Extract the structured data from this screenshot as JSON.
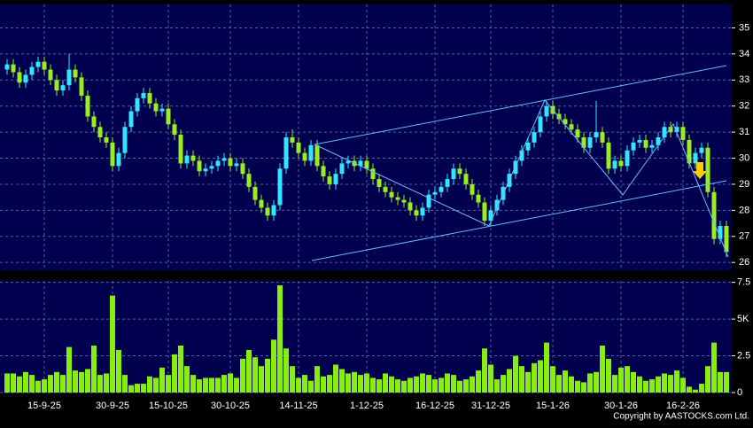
{
  "chart_data": {
    "type": "candlestick",
    "categories": [
      null,
      null,
      null,
      null,
      null,
      null,
      "15-9-25",
      null,
      null,
      null,
      null,
      null,
      null,
      null,
      null,
      null,
      null,
      "30-9-25",
      null,
      null,
      null,
      null,
      null,
      null,
      null,
      null,
      "15-10-25",
      null,
      null,
      null,
      null,
      null,
      null,
      null,
      null,
      null,
      "30-10-25",
      null,
      null,
      null,
      null,
      null,
      null,
      null,
      null,
      null,
      null,
      "14-11-25",
      null,
      null,
      null,
      null,
      null,
      null,
      null,
      null,
      null,
      null,
      "1-12-25",
      null,
      null,
      null,
      null,
      null,
      null,
      null,
      null,
      null,
      null,
      "16-12-25",
      null,
      null,
      null,
      null,
      null,
      null,
      null,
      null,
      "31-12-25",
      null,
      null,
      null,
      null,
      null,
      null,
      null,
      null,
      null,
      "15-1-26",
      null,
      null,
      null,
      null,
      null,
      null,
      null,
      null,
      null,
      null,
      "30-1-26",
      null,
      null,
      null,
      null,
      null,
      null,
      null,
      null,
      null,
      "16-2-26",
      null,
      null,
      null,
      null,
      null,
      null,
      null
    ],
    "open": [
      33.4,
      33.6,
      33.3,
      32.9,
      33.2,
      33.5,
      33.7,
      33.4,
      33.0,
      32.6,
      32.8,
      33.4,
      33.1,
      32.4,
      31.6,
      31.2,
      30.8,
      30.6,
      29.7,
      30.2,
      31.2,
      31.8,
      32.3,
      32.5,
      32.1,
      31.8,
      31.9,
      31.3,
      30.9,
      29.8,
      30.1,
      29.9,
      29.5,
      29.6,
      29.7,
      29.9,
      30.0,
      29.7,
      29.8,
      29.4,
      28.9,
      28.4,
      28.1,
      27.8,
      28.2,
      29.6,
      30.8,
      30.6,
      30.2,
      29.9,
      30.5,
      29.7,
      29.3,
      29.0,
      29.4,
      29.8,
      29.9,
      29.7,
      29.9,
      29.6,
      29.2,
      28.9,
      28.7,
      28.5,
      28.4,
      28.3,
      28.0,
      27.8,
      28.1,
      28.6,
      28.7,
      28.9,
      29.2,
      29.6,
      29.4,
      29.0,
      28.6,
      28.3,
      27.6,
      28.0,
      28.4,
      28.9,
      29.4,
      29.9,
      30.3,
      30.6,
      31.0,
      31.6,
      32.0,
      31.7,
      31.5,
      31.3,
      31.1,
      30.8,
      30.4,
      30.8,
      31.0,
      30.6,
      29.6,
      29.9,
      29.7,
      30.3,
      30.6,
      30.7,
      30.4,
      30.5,
      30.8,
      31.2,
      31.0,
      31.2,
      30.7,
      29.8,
      30.2,
      30.4,
      28.7,
      26.9,
      27.4
    ],
    "high": [
      33.8,
      33.8,
      33.5,
      33.4,
      33.7,
      33.9,
      33.9,
      33.6,
      33.2,
      33.0,
      34.0,
      33.6,
      33.3,
      32.6,
      31.8,
      31.4,
      31.0,
      30.8,
      30.4,
      31.4,
      32.0,
      32.5,
      32.7,
      32.7,
      32.3,
      32.1,
      32.1,
      31.5,
      31.1,
      30.3,
      30.3,
      30.1,
      29.8,
      29.9,
      30.1,
      30.2,
      30.2,
      30.0,
      30.0,
      29.6,
      29.1,
      28.6,
      28.3,
      28.4,
      29.8,
      31.0,
      31.1,
      30.8,
      30.4,
      30.7,
      30.7,
      29.9,
      29.5,
      29.6,
      30.0,
      30.1,
      30.1,
      30.1,
      30.1,
      29.8,
      29.4,
      29.1,
      28.9,
      28.7,
      28.6,
      28.5,
      28.2,
      28.3,
      28.8,
      28.9,
      29.1,
      29.4,
      29.8,
      29.8,
      29.6,
      29.2,
      28.8,
      28.5,
      28.2,
      28.6,
      29.1,
      29.6,
      30.1,
      30.5,
      30.8,
      31.2,
      31.8,
      32.2,
      32.2,
      31.9,
      31.7,
      31.5,
      31.3,
      31.0,
      31.0,
      32.2,
      31.2,
      30.8,
      30.1,
      30.1,
      30.5,
      30.8,
      30.9,
      30.9,
      30.7,
      31.0,
      31.4,
      31.4,
      31.4,
      31.4,
      30.9,
      30.4,
      30.6,
      30.6,
      28.9,
      27.6,
      27.6
    ],
    "low": [
      33.2,
      33.1,
      32.7,
      32.7,
      33.0,
      33.3,
      33.2,
      32.8,
      32.4,
      32.4,
      32.6,
      32.9,
      32.2,
      31.4,
      31.0,
      30.6,
      30.4,
      29.5,
      29.5,
      30.0,
      31.0,
      31.6,
      32.1,
      31.9,
      31.6,
      31.6,
      31.1,
      30.7,
      29.6,
      29.6,
      29.7,
      29.3,
      29.3,
      29.4,
      29.5,
      29.7,
      29.5,
      29.5,
      29.2,
      28.7,
      28.2,
      27.9,
      27.6,
      27.6,
      28.0,
      29.4,
      30.4,
      30.0,
      29.7,
      29.7,
      29.5,
      29.1,
      28.8,
      28.8,
      29.2,
      29.6,
      29.5,
      29.5,
      29.4,
      29.0,
      28.7,
      28.5,
      28.3,
      28.2,
      28.1,
      27.8,
      27.6,
      27.6,
      27.9,
      28.4,
      28.5,
      28.7,
      29.0,
      29.2,
      28.8,
      28.4,
      28.1,
      27.4,
      27.4,
      27.8,
      28.2,
      28.7,
      29.2,
      29.7,
      30.1,
      30.4,
      30.8,
      31.4,
      31.5,
      31.3,
      31.1,
      30.9,
      30.6,
      30.2,
      30.2,
      30.6,
      30.4,
      29.4,
      29.4,
      29.5,
      29.5,
      30.1,
      30.4,
      30.2,
      30.2,
      30.3,
      30.6,
      30.8,
      30.8,
      30.5,
      29.6,
      29.6,
      30.0,
      28.5,
      26.7,
      26.7,
      26.2
    ],
    "close": [
      33.6,
      33.3,
      32.9,
      33.2,
      33.5,
      33.7,
      33.4,
      33.0,
      32.6,
      32.8,
      33.4,
      33.1,
      32.4,
      31.6,
      31.2,
      30.8,
      30.6,
      29.7,
      30.2,
      31.2,
      31.8,
      32.3,
      32.5,
      32.1,
      31.8,
      31.9,
      31.3,
      30.9,
      29.8,
      30.1,
      29.9,
      29.5,
      29.6,
      29.7,
      29.9,
      30.0,
      29.7,
      29.8,
      29.4,
      28.9,
      28.4,
      28.1,
      27.8,
      28.2,
      29.6,
      30.8,
      30.6,
      30.2,
      29.9,
      30.5,
      29.7,
      29.3,
      29.0,
      29.4,
      29.8,
      29.9,
      29.7,
      29.9,
      29.6,
      29.2,
      28.9,
      28.7,
      28.5,
      28.4,
      28.3,
      28.0,
      27.8,
      28.1,
      28.6,
      28.7,
      28.9,
      29.2,
      29.6,
      29.4,
      29.0,
      28.6,
      28.3,
      27.6,
      28.0,
      28.4,
      28.9,
      29.4,
      29.9,
      30.3,
      30.6,
      31.0,
      31.6,
      32.0,
      31.7,
      31.5,
      31.3,
      31.1,
      30.8,
      30.4,
      30.8,
      31.0,
      30.6,
      29.6,
      29.9,
      29.7,
      30.3,
      30.6,
      30.7,
      30.4,
      30.5,
      30.8,
      31.2,
      31.0,
      31.2,
      30.7,
      29.8,
      30.2,
      30.4,
      28.7,
      26.9,
      27.4,
      26.4
    ],
    "up_color": "#33e6ff",
    "down_color": "#99ee22",
    "ylim": [
      25.7,
      35.9
    ],
    "yticks": [
      26,
      27,
      28,
      29,
      30,
      31,
      32,
      33,
      34,
      35
    ],
    "grid": true,
    "volume": {
      "values": [
        1.3,
        1.3,
        1.1,
        1.4,
        1.2,
        0.8,
        0.9,
        1.2,
        1.4,
        1.2,
        3.1,
        1.5,
        1.4,
        1.6,
        3.2,
        1.2,
        1.3,
        6.6,
        2.9,
        1.2,
        0.5,
        0.6,
        0.6,
        1.1,
        1.0,
        1.7,
        1.2,
        2.6,
        3.2,
        1.8,
        1.2,
        0.9,
        1.0,
        1.0,
        1.0,
        1.2,
        1.3,
        1.0,
        2.3,
        2.9,
        2.4,
        1.8,
        2.3,
        3.6,
        7.3,
        3.0,
        1.8,
        1.0,
        1.2,
        0.8,
        1.8,
        1.1,
        1.2,
        1.9,
        1.6,
        1.3,
        1.4,
        1.2,
        1.3,
        1.0,
        0.9,
        1.3,
        1.1,
        0.9,
        0.8,
        1.0,
        1.1,
        1.3,
        1.2,
        0.9,
        1.0,
        1.3,
        1.2,
        0.8,
        0.9,
        1.1,
        1.5,
        3.0,
        1.9,
        0.9,
        1.2,
        1.6,
        2.5,
        1.8,
        1.4,
        2.0,
        2.2,
        3.4,
        1.8,
        1.2,
        1.5,
        1.1,
        0.8,
        0.7,
        1.3,
        1.4,
        3.2,
        2.3,
        1.2,
        1.7,
        1.8,
        1.4,
        1.1,
        0.8,
        0.9,
        1.1,
        1.3,
        1.2,
        1.5,
        1.0,
        0.4,
        0.2,
        0.6,
        1.8,
        3.4,
        1.4,
        1.4
      ],
      "color": "#88ee11",
      "ylim": [
        0,
        7.6
      ],
      "yticks": [
        0,
        2.5,
        {
          "value": 5,
          "label": "5K"
        },
        7.5
      ]
    },
    "copyright": "Copyright by AASTOCKS.com Ltd."
  }
}
